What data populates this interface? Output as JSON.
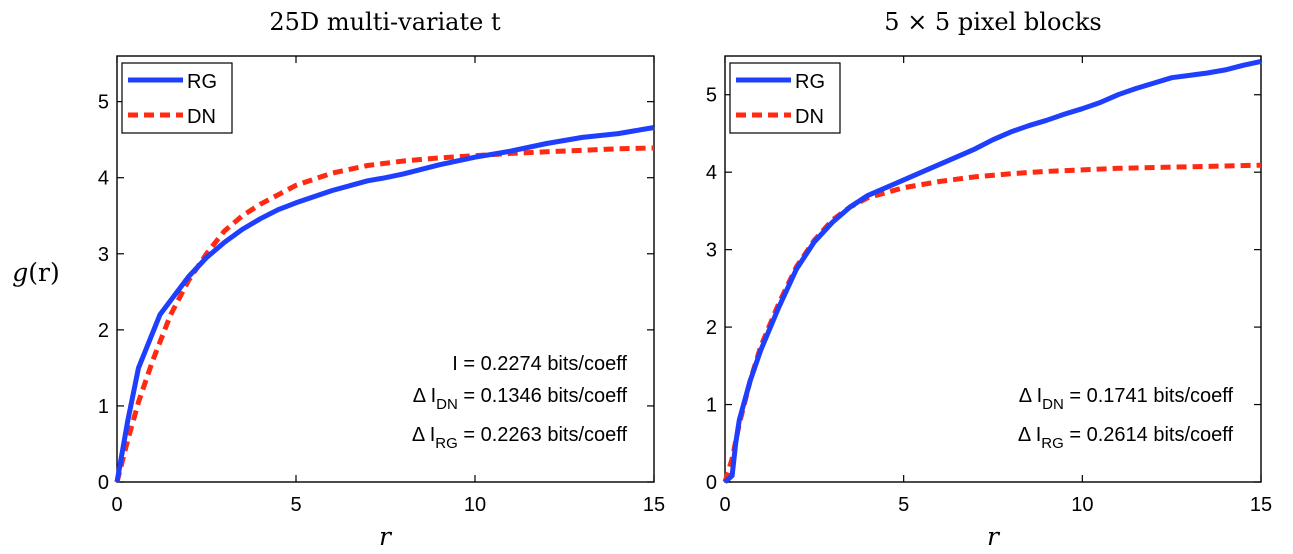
{
  "figure": {
    "ylabel_main": "g(r)",
    "ylabel_g": "g",
    "ylabel_rest": "(r)",
    "colors": {
      "rg": "#1f3fff",
      "dn": "#ff2a12",
      "axis": "#000000",
      "background": "#ffffff"
    }
  },
  "chart_data": [
    {
      "type": "line",
      "title": "25D multi-variate t",
      "xlabel": "r",
      "ylabel": "g(r)",
      "xlim": [
        0,
        15
      ],
      "ylim": [
        0,
        5.6
      ],
      "xticks": [
        0,
        5,
        10,
        15
      ],
      "yticks": [
        0,
        1,
        2,
        3,
        4,
        5
      ],
      "grid": false,
      "legend_position": "top-left",
      "series": [
        {
          "name": "RG",
          "style": "solid",
          "color": "#1f3fff",
          "x": [
            0,
            0.3,
            0.6,
            1.2,
            2.0,
            2.5,
            3.0,
            3.5,
            4.0,
            4.5,
            5.0,
            6.0,
            7.0,
            7.5,
            8.0,
            9.0,
            10.0,
            11.0,
            12.0,
            13.0,
            14.0,
            15.0
          ],
          "y": [
            0,
            0.8,
            1.5,
            2.2,
            2.7,
            2.95,
            3.15,
            3.32,
            3.46,
            3.58,
            3.67,
            3.83,
            3.96,
            4.0,
            4.05,
            4.17,
            4.27,
            4.35,
            4.45,
            4.53,
            4.58,
            4.66
          ]
        },
        {
          "name": "DN",
          "style": "dashed",
          "color": "#ff2a12",
          "x": [
            0,
            0.3,
            0.6,
            1.0,
            1.5,
            2.0,
            2.5,
            3.0,
            3.5,
            4.0,
            5.0,
            6.0,
            7.0,
            8.0,
            9.0,
            10.0,
            11.0,
            12.0,
            13.0,
            14.0,
            15.0
          ],
          "y": [
            0,
            0.55,
            1.05,
            1.6,
            2.2,
            2.65,
            3.0,
            3.3,
            3.5,
            3.65,
            3.9,
            4.06,
            4.16,
            4.22,
            4.26,
            4.29,
            4.32,
            4.34,
            4.36,
            4.38,
            4.39
          ]
        }
      ],
      "annotations": {
        "line1": "I = 0.2274 bits/coeff",
        "line2_prefix": "Δ I",
        "line2_sub": "DN",
        "line2_suffix": " = 0.1346 bits/coeff",
        "line3_prefix": "Δ I",
        "line3_sub": "RG",
        "line3_suffix": " = 0.2263 bits/coeff"
      }
    },
    {
      "type": "line",
      "title": "5 × 5 pixel blocks",
      "xlabel": "r",
      "ylabel": "g(r)",
      "xlim": [
        0,
        15
      ],
      "ylim": [
        0,
        5.5
      ],
      "xticks": [
        0,
        5,
        10,
        15
      ],
      "yticks": [
        0,
        1,
        2,
        3,
        4,
        5
      ],
      "grid": false,
      "legend_position": "top-left",
      "series": [
        {
          "name": "RG",
          "style": "solid",
          "color": "#1f3fff",
          "x": [
            0,
            0.2,
            0.3,
            0.4,
            0.7,
            1.0,
            1.5,
            2.0,
            2.5,
            3.0,
            3.5,
            4.0,
            4.5,
            5.0,
            5.5,
            6.0,
            6.5,
            7.0,
            7.5,
            8.0,
            8.5,
            9.0,
            9.5,
            10.0,
            10.5,
            11.0,
            11.5,
            12.0,
            12.5,
            13.0,
            13.5,
            14.0,
            14.5,
            15.0
          ],
          "y": [
            0,
            0.08,
            0.5,
            0.8,
            1.3,
            1.7,
            2.25,
            2.75,
            3.1,
            3.35,
            3.55,
            3.7,
            3.8,
            3.9,
            4.0,
            4.1,
            4.2,
            4.3,
            4.42,
            4.52,
            4.6,
            4.67,
            4.75,
            4.82,
            4.9,
            5.0,
            5.08,
            5.15,
            5.22,
            5.25,
            5.28,
            5.32,
            5.38,
            5.43
          ]
        },
        {
          "name": "DN",
          "style": "dashed",
          "color": "#ff2a12",
          "x": [
            0,
            0.2,
            0.4,
            0.7,
            1.0,
            1.5,
            2.0,
            2.5,
            3.0,
            3.5,
            4.0,
            5.0,
            6.0,
            7.0,
            8.0,
            9.0,
            10.0,
            11.0,
            12.0,
            13.0,
            14.0,
            15.0
          ],
          "y": [
            0,
            0.3,
            0.75,
            1.3,
            1.75,
            2.3,
            2.78,
            3.12,
            3.38,
            3.55,
            3.67,
            3.8,
            3.88,
            3.94,
            3.98,
            4.01,
            4.03,
            4.05,
            4.06,
            4.07,
            4.08,
            4.09
          ]
        }
      ],
      "annotations": {
        "line1": "",
        "line2_prefix": "Δ I",
        "line2_sub": "DN",
        "line2_suffix": " = 0.1741 bits/coeff",
        "line3_prefix": "Δ I",
        "line3_sub": "RG",
        "line3_suffix": " = 0.2614 bits/coeff"
      }
    }
  ]
}
